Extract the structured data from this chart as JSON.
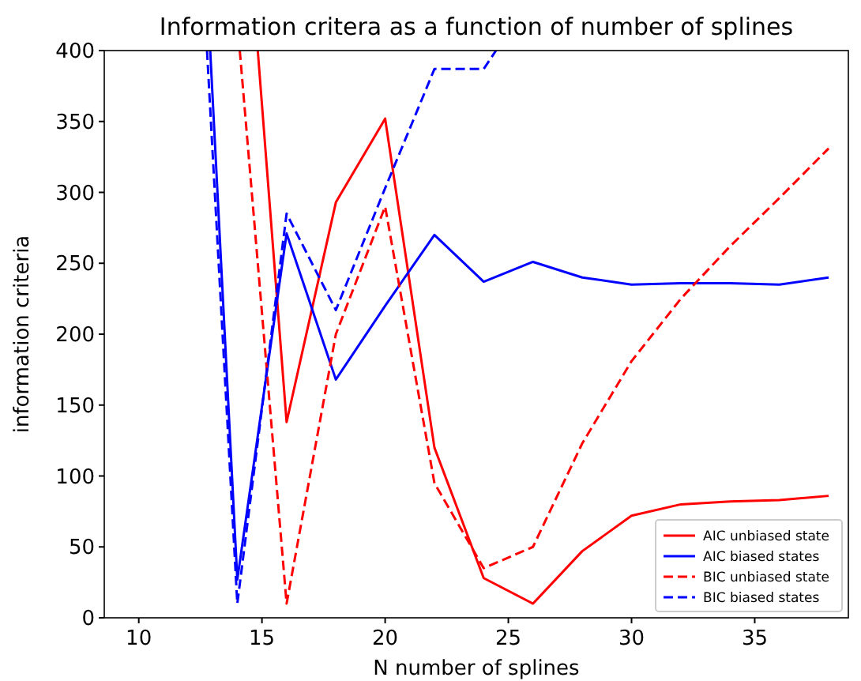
{
  "chart_data": {
    "type": "line",
    "title": "Information critera as a function of number of splines",
    "xlabel": "N number of splines",
    "ylabel": "information criteria",
    "xlim": [
      8.6,
      38.8
    ],
    "xticks": [
      10,
      15,
      20,
      25,
      30,
      35
    ],
    "ylim": [
      0,
      400
    ],
    "yticks": [
      0,
      50,
      100,
      150,
      200,
      250,
      300,
      350,
      400
    ],
    "grid": false,
    "legend": "bottom right",
    "series": [
      {
        "name": "AIC unbiased state",
        "color": "#ff0000",
        "line_style": "solid",
        "x": [
          14.83,
          16,
          18,
          20,
          22,
          24,
          26,
          28,
          30,
          32,
          34,
          36,
          38
        ],
        "values": [
          400,
          138,
          293,
          352,
          120,
          28,
          10,
          47,
          72,
          80,
          82,
          83,
          86
        ]
      },
      {
        "name": "AIC biased states",
        "color": "#0000ff",
        "line_style": "solid",
        "x": [
          12.9,
          14,
          16,
          18,
          20,
          22,
          24,
          26,
          28,
          30,
          32,
          34,
          36,
          38
        ],
        "values": [
          400,
          27,
          271,
          168,
          220,
          270,
          237,
          251,
          240,
          235,
          236,
          236,
          235,
          240
        ]
      },
      {
        "name": "BIC unbiased state",
        "color": "#ff0000",
        "line_style": "dashed",
        "x": [
          14.1,
          16,
          18,
          20,
          22,
          24,
          26,
          28,
          30,
          32,
          34,
          36,
          38
        ],
        "values": [
          400,
          10,
          200,
          290,
          95,
          35,
          50,
          123,
          181,
          225,
          262,
          296,
          331
        ]
      },
      {
        "name": "BIC biased states",
        "color": "#0000ff",
        "line_style": "dashed",
        "x": [
          12.77,
          14,
          16,
          18,
          20,
          22,
          24,
          24.5
        ],
        "values": [
          400,
          10,
          285,
          217,
          303,
          387,
          387,
          400
        ]
      }
    ]
  }
}
